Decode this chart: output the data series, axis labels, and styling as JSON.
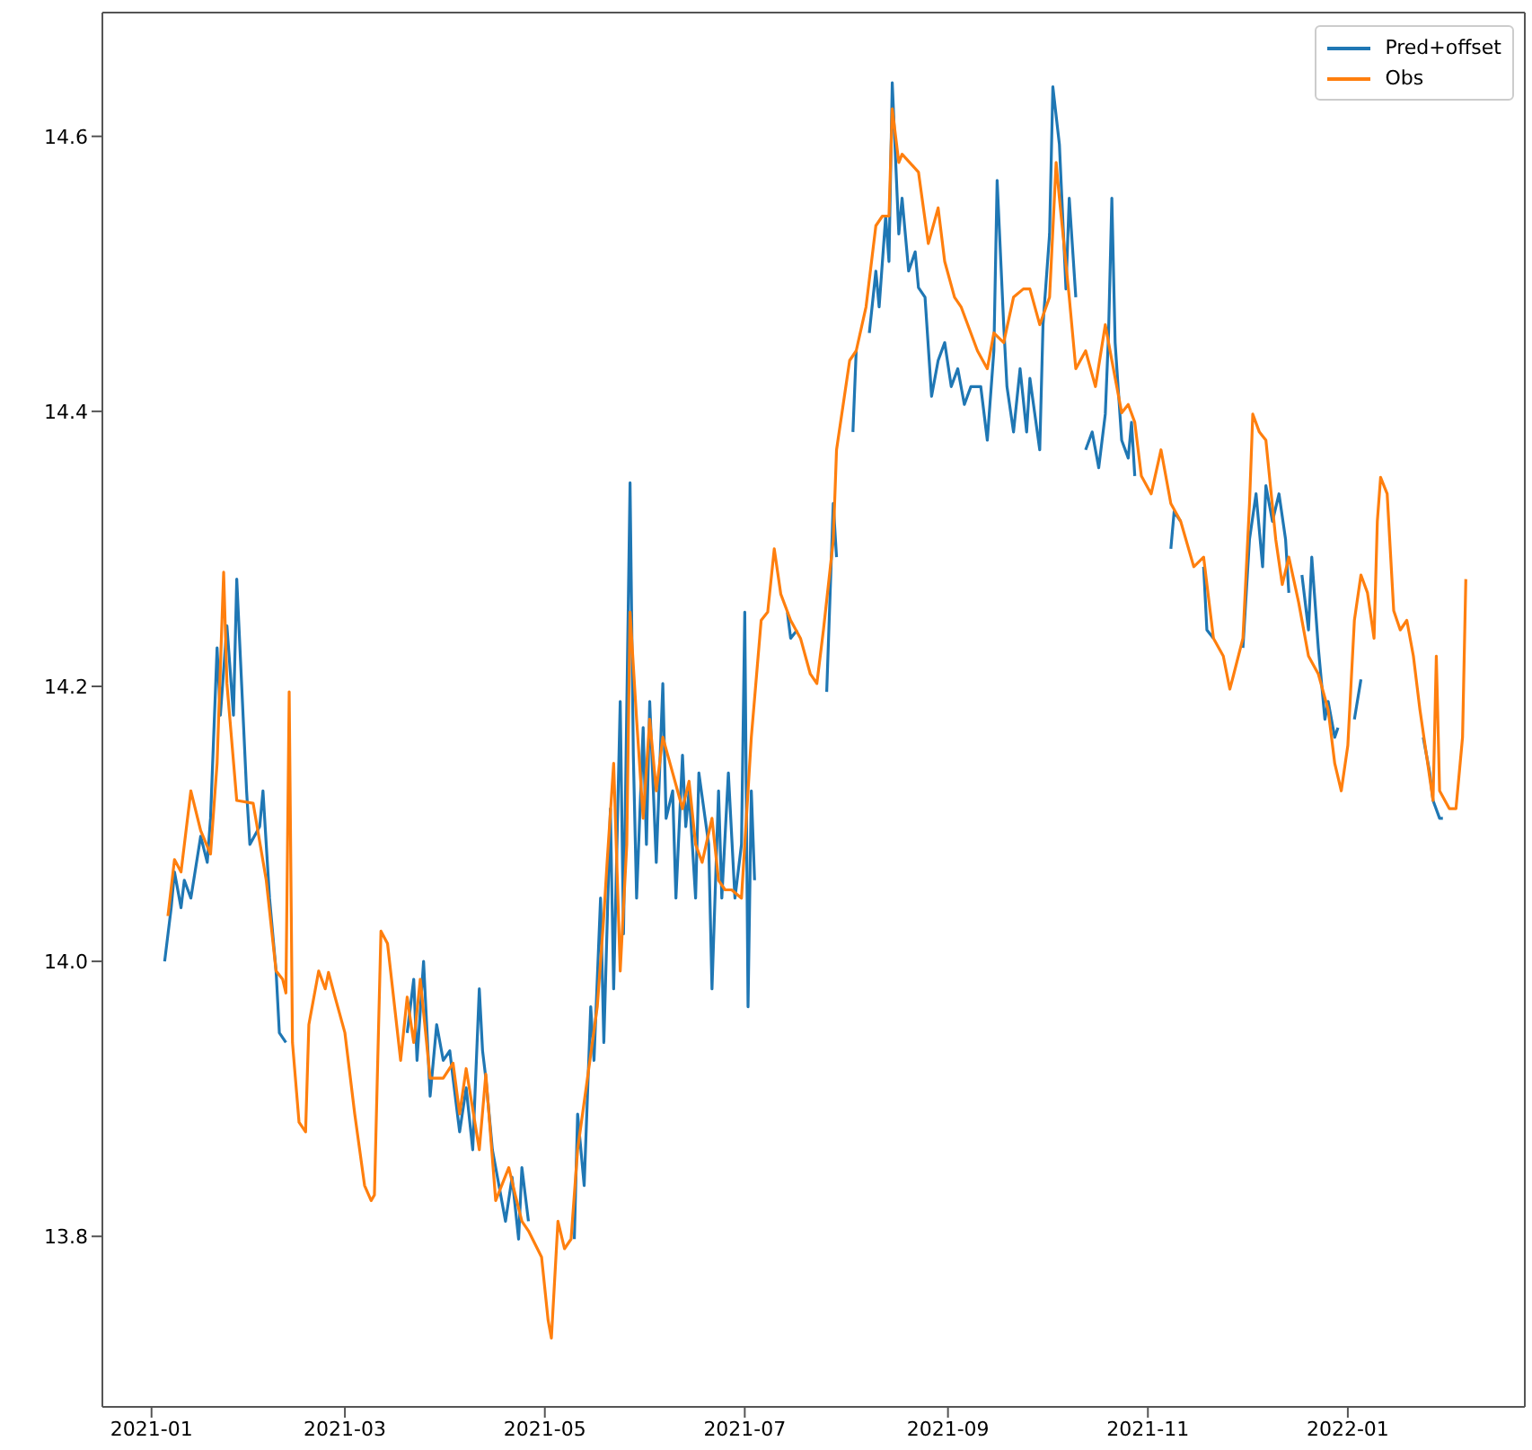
{
  "chart_data": {
    "type": "line",
    "xlim": [
      "2020-12-17",
      "2022-02-24"
    ],
    "xticks": [
      "2021-01",
      "2021-03",
      "2021-05",
      "2021-07",
      "2021-09",
      "2021-11",
      "2022-01"
    ],
    "ylim": [
      13.676,
      14.69
    ],
    "yticks": [
      {
        "value": 13.8,
        "label": "13.8"
      },
      {
        "value": 14.0,
        "label": "14.0"
      },
      {
        "value": 14.2,
        "label": "14.2"
      },
      {
        "value": 14.4,
        "label": "14.4"
      },
      {
        "value": 14.6,
        "label": "14.6"
      }
    ],
    "legend": "top right",
    "marker": "none",
    "line_style": "solid",
    "series": [
      {
        "name": "Pred+offset",
        "color": "#1f77b4",
        "x": [
          "2021-01-05",
          "2021-01-07",
          "2021-01-08",
          "2021-01-10",
          "2021-01-11",
          "2021-01-13",
          "2021-01-16",
          "2021-01-18",
          "2021-01-19",
          "2021-01-21",
          "2021-01-22",
          "2021-01-24",
          "2021-01-26",
          "2021-01-27",
          "2021-01-30",
          "2021-01-31",
          "2021-02-03",
          "2021-02-04",
          "2021-02-06",
          "2021-02-08",
          "2021-02-09",
          "2021-02-11",
          "2021-02-13",
          "2021-03-01",
          "2021-03-20",
          "2021-03-22",
          "2021-03-23",
          "2021-03-25",
          "2021-03-27",
          "2021-03-29",
          "2021-03-31",
          "2021-04-02",
          "2021-04-03",
          "2021-04-05",
          "2021-04-07",
          "2021-04-09",
          "2021-04-11",
          "2021-04-12",
          "2021-04-13",
          "2021-04-15",
          "2021-04-17",
          "2021-04-19",
          "2021-04-21",
          "2021-04-23",
          "2021-04-24",
          "2021-04-26",
          "2021-04-29",
          "2021-05-10",
          "2021-05-11",
          "2021-05-13",
          "2021-05-15",
          "2021-05-16",
          "2021-05-18",
          "2021-05-19",
          "2021-05-21",
          "2021-05-22",
          "2021-05-24",
          "2021-05-25",
          "2021-05-27",
          "2021-05-28",
          "2021-05-29",
          "2021-05-31",
          "2021-06-01",
          "2021-06-02",
          "2021-06-04",
          "2021-06-06",
          "2021-06-07",
          "2021-06-09",
          "2021-06-10",
          "2021-06-12",
          "2021-06-13",
          "2021-06-14",
          "2021-06-16",
          "2021-06-17",
          "2021-06-20",
          "2021-06-21",
          "2021-06-23",
          "2021-06-24",
          "2021-06-26",
          "2021-06-28",
          "2021-06-30",
          "2021-07-01",
          "2021-07-02",
          "2021-07-03",
          "2021-07-04",
          "2021-07-08",
          "2021-07-14",
          "2021-07-15",
          "2021-07-17",
          "2021-07-20",
          "2021-07-26",
          "2021-07-28",
          "2021-07-29",
          "2021-07-31",
          "2021-08-03",
          "2021-08-04",
          "2021-08-06",
          "2021-08-08",
          "2021-08-10",
          "2021-08-11",
          "2021-08-13",
          "2021-08-14",
          "2021-08-15",
          "2021-08-17",
          "2021-08-18",
          "2021-08-20",
          "2021-08-22",
          "2021-08-23",
          "2021-08-25",
          "2021-08-27",
          "2021-08-29",
          "2021-08-31",
          "2021-09-02",
          "2021-09-04",
          "2021-09-06",
          "2021-09-08",
          "2021-09-11",
          "2021-09-13",
          "2021-09-15",
          "2021-09-16",
          "2021-09-18",
          "2021-09-19",
          "2021-09-21",
          "2021-09-23",
          "2021-09-25",
          "2021-09-26",
          "2021-09-29",
          "2021-09-30",
          "2021-10-02",
          "2021-10-03",
          "2021-10-05",
          "2021-10-07",
          "2021-10-08",
          "2021-10-10",
          "2021-10-12",
          "2021-10-13",
          "2021-10-15",
          "2021-10-17",
          "2021-10-19",
          "2021-10-20",
          "2021-10-21",
          "2021-10-22",
          "2021-10-24",
          "2021-10-26",
          "2021-10-27",
          "2021-10-28",
          "2021-11-01",
          "2021-11-08",
          "2021-11-09",
          "2021-11-11",
          "2021-11-14",
          "2021-11-18",
          "2021-11-19",
          "2021-11-21",
          "2021-11-24",
          "2021-11-30",
          "2021-12-02",
          "2021-12-04",
          "2021-12-06",
          "2021-12-07",
          "2021-12-09",
          "2021-12-11",
          "2021-12-13",
          "2021-12-14",
          "2021-12-16",
          "2021-12-18",
          "2021-12-20",
          "2021-12-21",
          "2021-12-23",
          "2021-12-25",
          "2021-12-26",
          "2021-12-28",
          "2021-12-29",
          "2022-01-01",
          "2022-01-03",
          "2022-01-05",
          "2022-01-09",
          "2022-01-24",
          "2022-01-26",
          "2022-01-27",
          "2022-01-29",
          "2022-01-30"
        ],
        "values": [
          14.0,
          14.039,
          14.065,
          14.039,
          14.059,
          14.046,
          14.091,
          14.072,
          14.104,
          14.228,
          14.179,
          14.244,
          14.179,
          14.278,
          14.124,
          14.085,
          14.098,
          14.124,
          14.046,
          13.993,
          13.948,
          13.941,
          null,
          null,
          13.948,
          13.987,
          13.928,
          14.0,
          13.902,
          13.954,
          13.928,
          13.935,
          13.915,
          13.876,
          13.908,
          13.863,
          13.98,
          13.935,
          13.915,
          13.863,
          13.837,
          13.811,
          13.843,
          13.798,
          13.85,
          13.811,
          null,
          13.798,
          13.889,
          13.837,
          13.967,
          13.928,
          14.046,
          13.941,
          14.111,
          13.98,
          14.189,
          14.02,
          14.348,
          14.15,
          14.046,
          14.17,
          14.085,
          14.189,
          14.072,
          14.202,
          14.104,
          14.124,
          14.046,
          14.15,
          14.098,
          14.124,
          14.046,
          14.137,
          14.085,
          13.98,
          14.124,
          14.046,
          14.137,
          14.046,
          14.085,
          14.254,
          13.967,
          14.124,
          14.059,
          null,
          14.254,
          14.235,
          14.241,
          null,
          14.196,
          14.333,
          14.294,
          null,
          14.385,
          14.444,
          null,
          14.457,
          14.502,
          14.476,
          14.542,
          14.509,
          14.639,
          14.529,
          14.555,
          14.502,
          14.516,
          14.49,
          14.483,
          14.411,
          14.437,
          14.45,
          14.418,
          14.431,
          14.405,
          14.418,
          14.418,
          14.379,
          14.444,
          14.568,
          14.463,
          14.418,
          14.385,
          14.431,
          14.385,
          14.424,
          14.372,
          14.463,
          14.529,
          14.636,
          14.594,
          14.489,
          14.555,
          14.483,
          null,
          14.372,
          14.385,
          14.359,
          14.398,
          14.457,
          14.555,
          14.45,
          14.379,
          14.366,
          14.392,
          14.353,
          null,
          14.3,
          14.327,
          14.32,
          null,
          14.287,
          14.241,
          14.235,
          null,
          14.228,
          14.307,
          14.34,
          14.287,
          14.346,
          14.32,
          14.34,
          14.307,
          14.268,
          null,
          14.281,
          14.241,
          14.294,
          14.228,
          14.176,
          14.189,
          14.163,
          14.17,
          null,
          14.176,
          14.205,
          null,
          14.163,
          14.137,
          14.117,
          14.104,
          14.104
        ]
      },
      {
        "name": "Obs",
        "color": "#ff7f0e",
        "x": [
          "2021-01-06",
          "2021-01-08",
          "2021-01-10",
          "2021-01-13",
          "2021-01-16",
          "2021-01-19",
          "2021-01-21",
          "2021-01-23",
          "2021-01-24",
          "2021-01-27",
          "2021-02-01",
          "2021-02-05",
          "2021-02-08",
          "2021-02-10",
          "2021-02-11",
          "2021-02-12",
          "2021-02-13",
          "2021-02-15",
          "2021-02-17",
          "2021-02-18",
          "2021-02-21",
          "2021-02-23",
          "2021-02-24",
          "2021-02-26",
          "2021-03-01",
          "2021-03-04",
          "2021-03-07",
          "2021-03-09",
          "2021-03-10",
          "2021-03-12",
          "2021-03-14",
          "2021-03-18",
          "2021-03-20",
          "2021-03-22",
          "2021-03-24",
          "2021-03-27",
          "2021-03-31",
          "2021-04-03",
          "2021-04-05",
          "2021-04-07",
          "2021-04-11",
          "2021-04-13",
          "2021-04-16",
          "2021-04-20",
          "2021-04-22",
          "2021-04-24",
          "2021-04-26",
          "2021-04-30",
          "2021-05-02",
          "2021-05-03",
          "2021-05-05",
          "2021-05-07",
          "2021-05-09",
          "2021-05-11",
          "2021-05-14",
          "2021-05-17",
          "2021-05-19",
          "2021-05-20",
          "2021-05-22",
          "2021-05-24",
          "2021-05-26",
          "2021-05-27",
          "2021-05-29",
          "2021-05-31",
          "2021-06-02",
          "2021-06-04",
          "2021-06-06",
          "2021-06-09",
          "2021-06-12",
          "2021-06-14",
          "2021-06-16",
          "2021-06-18",
          "2021-06-21",
          "2021-06-23",
          "2021-06-25",
          "2021-06-27",
          "2021-06-30",
          "2021-07-02",
          "2021-07-03",
          "2021-07-06",
          "2021-07-08",
          "2021-07-10",
          "2021-07-12",
          "2021-07-15",
          "2021-07-18",
          "2021-07-21",
          "2021-07-23",
          "2021-07-25",
          "2021-07-28",
          "2021-07-29",
          "2021-08-02",
          "2021-08-04",
          "2021-08-07",
          "2021-08-10",
          "2021-08-12",
          "2021-08-14",
          "2021-08-15",
          "2021-08-17",
          "2021-08-18",
          "2021-08-23",
          "2021-08-26",
          "2021-08-29",
          "2021-08-31",
          "2021-09-03",
          "2021-09-05",
          "2021-09-10",
          "2021-09-13",
          "2021-09-15",
          "2021-09-18",
          "2021-09-21",
          "2021-09-24",
          "2021-09-26",
          "2021-09-29",
          "2021-10-02",
          "2021-10-04",
          "2021-10-05",
          "2021-10-08",
          "2021-10-10",
          "2021-10-13",
          "2021-10-16",
          "2021-10-19",
          "2021-10-21",
          "2021-10-24",
          "2021-10-26",
          "2021-10-28",
          "2021-10-30",
          "2021-11-02",
          "2021-11-05",
          "2021-11-08",
          "2021-11-11",
          "2021-11-15",
          "2021-11-18",
          "2021-11-21",
          "2021-11-24",
          "2021-11-26",
          "2021-11-27",
          "2021-11-30",
          "2021-12-02",
          "2021-12-03",
          "2021-12-05",
          "2021-12-07",
          "2021-12-10",
          "2021-12-12",
          "2021-12-14",
          "2021-12-17",
          "2021-12-20",
          "2021-12-23",
          "2021-12-26",
          "2021-12-28",
          "2021-12-30",
          "2022-01-01",
          "2022-01-03",
          "2022-01-05",
          "2022-01-07",
          "2022-01-09",
          "2022-01-10",
          "2022-01-11",
          "2022-01-13",
          "2022-01-15",
          "2022-01-17",
          "2022-01-19",
          "2022-01-21",
          "2022-01-23",
          "2022-01-25",
          "2022-01-27",
          "2022-01-28",
          "2022-01-29",
          "2022-02-01",
          "2022-02-03",
          "2022-02-05",
          "2022-02-06"
        ],
        "values": [
          14.033,
          14.074,
          14.065,
          14.124,
          14.095,
          14.078,
          14.144,
          14.283,
          14.202,
          14.117,
          14.115,
          14.059,
          13.993,
          13.987,
          13.977,
          14.196,
          13.941,
          13.883,
          13.876,
          13.954,
          13.993,
          13.98,
          13.992,
          13.974,
          13.948,
          13.889,
          13.837,
          13.826,
          13.83,
          14.022,
          14.013,
          13.928,
          13.974,
          13.941,
          13.987,
          13.915,
          13.915,
          13.926,
          13.889,
          13.922,
          13.863,
          13.918,
          13.826,
          13.85,
          13.83,
          13.811,
          13.804,
          13.785,
          13.739,
          13.726,
          13.811,
          13.791,
          13.798,
          13.863,
          13.915,
          13.967,
          14.033,
          14.072,
          14.144,
          13.993,
          14.085,
          14.254,
          14.176,
          14.104,
          14.176,
          14.124,
          14.163,
          14.137,
          14.111,
          14.131,
          14.085,
          14.072,
          14.104,
          14.059,
          14.052,
          14.052,
          14.046,
          14.124,
          14.163,
          14.248,
          14.254,
          14.3,
          14.267,
          14.248,
          14.235,
          14.209,
          14.202,
          14.241,
          14.306,
          14.372,
          14.437,
          14.444,
          14.476,
          14.535,
          14.542,
          14.542,
          14.62,
          14.581,
          14.587,
          14.574,
          14.522,
          14.548,
          14.509,
          14.483,
          14.476,
          14.444,
          14.431,
          14.457,
          14.45,
          14.483,
          14.489,
          14.489,
          14.463,
          14.483,
          14.581,
          14.555,
          14.483,
          14.431,
          14.444,
          14.418,
          14.463,
          14.437,
          14.399,
          14.405,
          14.392,
          14.353,
          14.34,
          14.372,
          14.333,
          14.32,
          14.287,
          14.294,
          14.235,
          14.222,
          14.198,
          14.207,
          14.235,
          14.333,
          14.398,
          14.385,
          14.379,
          14.307,
          14.274,
          14.294,
          14.261,
          14.222,
          14.209,
          14.183,
          14.144,
          14.124,
          14.157,
          14.248,
          14.281,
          14.268,
          14.235,
          14.32,
          14.352,
          14.34,
          14.255,
          14.241,
          14.248,
          14.222,
          14.183,
          14.15,
          14.117,
          14.222,
          14.124,
          14.111,
          14.111,
          14.163,
          14.278
        ]
      }
    ]
  }
}
